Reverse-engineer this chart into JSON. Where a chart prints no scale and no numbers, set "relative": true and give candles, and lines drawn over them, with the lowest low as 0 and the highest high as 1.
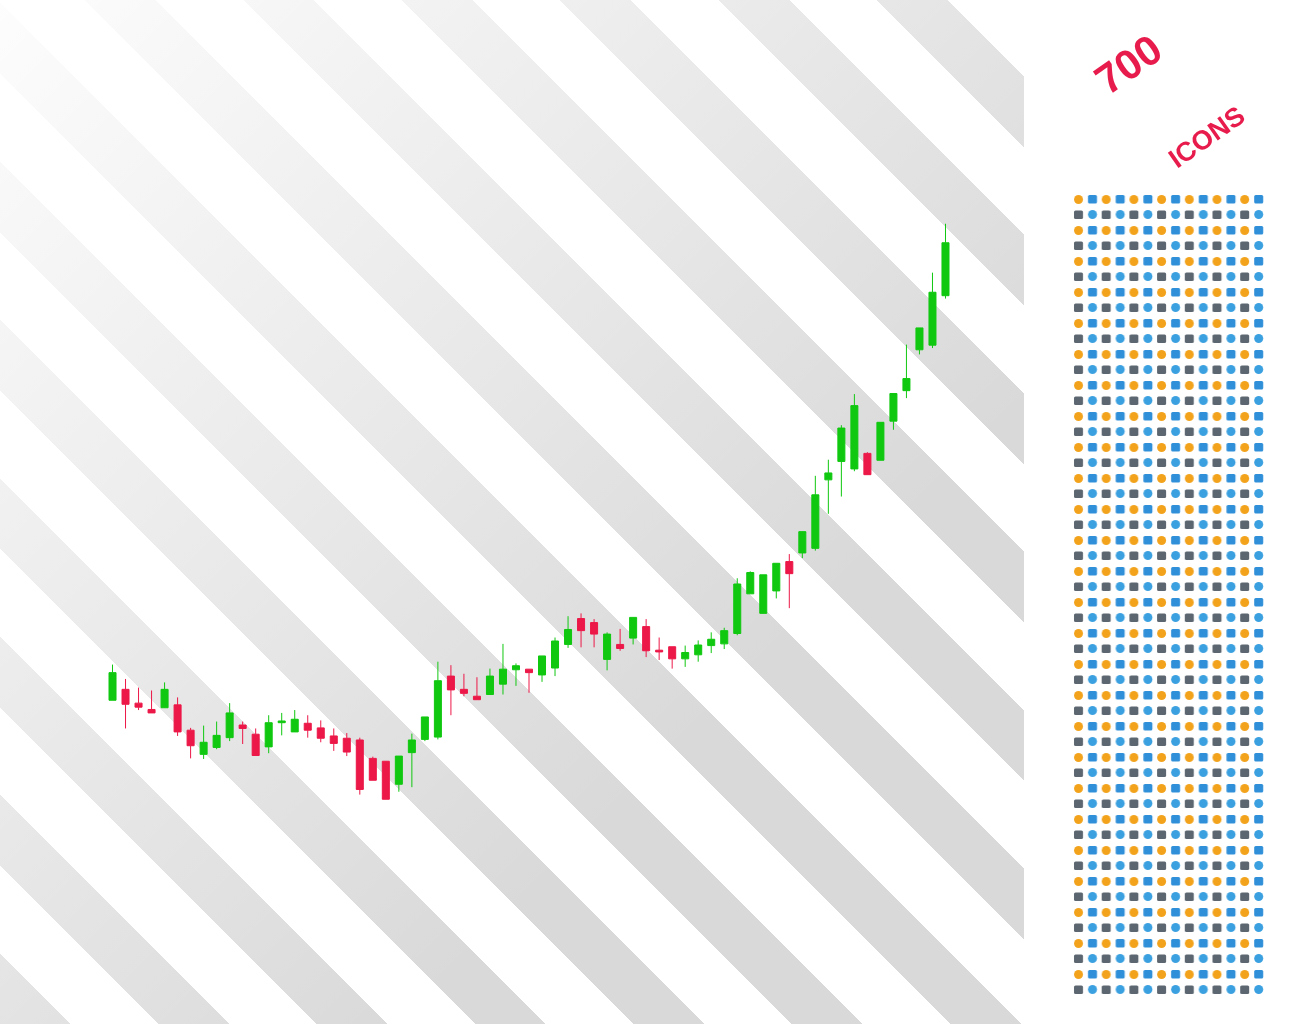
{
  "chart_data": {
    "type": "candlestick",
    "relative": true,
    "categories": [
      null,
      null,
      null,
      null,
      null,
      null,
      null,
      null,
      null,
      null,
      null,
      null,
      null,
      null,
      null,
      null,
      null,
      null,
      null,
      null,
      null,
      null,
      null,
      null,
      null,
      null,
      null,
      null,
      null,
      null,
      null,
      null,
      null,
      null,
      null,
      null,
      null,
      null,
      null,
      null,
      null,
      null,
      null,
      null,
      null,
      null,
      null,
      null,
      null,
      null,
      null,
      null,
      null,
      null,
      null,
      null,
      null,
      null,
      null,
      null,
      null,
      null,
      null,
      null,
      null
    ],
    "ohlc": [
      [
        0.172,
        0.234,
        0.172,
        0.22
      ],
      [
        0.191,
        0.209,
        0.123,
        0.165
      ],
      [
        0.167,
        0.194,
        0.155,
        0.16
      ],
      [
        0.156,
        0.189,
        0.15,
        0.15
      ],
      [
        0.159,
        0.203,
        0.159,
        0.191
      ],
      [
        0.164,
        0.177,
        0.11,
        0.117
      ],
      [
        0.12,
        0.124,
        0.071,
        0.093
      ],
      [
        0.078,
        0.128,
        0.07,
        0.099
      ],
      [
        0.09,
        0.135,
        0.087,
        0.111
      ],
      [
        0.107,
        0.167,
        0.101,
        0.15
      ],
      [
        0.129,
        0.135,
        0.096,
        0.123
      ],
      [
        0.113,
        0.123,
        0.076,
        0.076
      ],
      [
        0.091,
        0.146,
        0.08,
        0.133
      ],
      [
        0.133,
        0.15,
        0.111,
        0.136
      ],
      [
        0.117,
        0.155,
        0.117,
        0.139
      ],
      [
        0.132,
        0.146,
        0.107,
        0.12
      ],
      [
        0.124,
        0.137,
        0.099,
        0.106
      ],
      [
        0.11,
        0.123,
        0.084,
        0.097
      ],
      [
        0.106,
        0.115,
        0.075,
        0.082
      ],
      [
        0.103,
        0.107,
        0.008,
        0.017
      ],
      [
        0.071,
        0.074,
        0.033,
        0.033
      ],
      [
        0.066,
        0.066,
        0,
        0
      ],
      [
        0.026,
        0.075,
        0.013,
        0.075
      ],
      [
        0.081,
        0.114,
        0.021,
        0.103
      ],
      [
        0.104,
        0.143,
        0.101,
        0.143
      ],
      [
        0.108,
        0.239,
        0.104,
        0.206
      ],
      [
        0.214,
        0.233,
        0.146,
        0.19
      ],
      [
        0.191,
        0.218,
        0.179,
        0.184
      ],
      [
        0.179,
        0.212,
        0.173,
        0.173
      ],
      [
        0.182,
        0.227,
        0.182,
        0.214
      ],
      [
        0.2,
        0.27,
        0.182,
        0.226
      ],
      [
        0.225,
        0.236,
        0.197,
        0.232
      ],
      [
        0.226,
        0.226,
        0.185,
        0.22
      ],
      [
        0.216,
        0.249,
        0.204,
        0.249
      ],
      [
        0.228,
        0.281,
        0.214,
        0.275
      ],
      [
        0.269,
        0.318,
        0.263,
        0.295
      ],
      [
        0.314,
        0.323,
        0.264,
        0.293
      ],
      [
        0.307,
        0.313,
        0.264,
        0.287
      ],
      [
        0.243,
        0.29,
        0.224,
        0.287
      ],
      [
        0.269,
        0.296,
        0.258,
        0.262
      ],
      [
        0.28,
        0.316,
        0.269,
        0.316
      ],
      [
        0.3,
        0.313,
        0.247,
        0.258
      ],
      [
        0.259,
        0.281,
        0.242,
        0.256
      ],
      [
        0.265,
        0.265,
        0.227,
        0.244
      ],
      [
        0.244,
        0.267,
        0.23,
        0.255
      ],
      [
        0.251,
        0.276,
        0.239,
        0.268
      ],
      [
        0.267,
        0.29,
        0.254,
        0.278
      ],
      [
        0.27,
        0.298,
        0.261,
        0.293
      ],
      [
        0.288,
        0.384,
        0.285,
        0.374
      ],
      [
        0.357,
        0.396,
        0.357,
        0.394
      ],
      [
        0.323,
        0.39,
        0.323,
        0.39
      ],
      [
        0.362,
        0.41,
        0.349,
        0.41
      ],
      [
        0.413,
        0.426,
        0.332,
        0.392
      ],
      [
        0.428,
        0.465,
        0.419,
        0.465
      ],
      [
        0.436,
        0.562,
        0.432,
        0.529
      ],
      [
        0.555,
        0.59,
        0.496,
        0.567
      ],
      [
        0.587,
        0.65,
        0.526,
        0.645
      ],
      [
        0.574,
        0.704,
        0.57,
        0.684
      ],
      [
        0.601,
        0.603,
        0.564,
        0.564
      ],
      [
        0.589,
        0.655,
        0.589,
        0.655
      ],
      [
        0.657,
        0.705,
        0.642,
        0.705
      ],
      [
        0.71,
        0.79,
        0.697,
        0.731
      ],
      [
        0.781,
        0.819,
        0.773,
        0.819
      ],
      [
        0.789,
        0.915,
        0.784,
        0.881
      ],
      [
        0.875,
        1,
        0.87,
        0.967
      ]
    ],
    "colors": [
      "#10c810",
      "#ec1848",
      "#ec1848",
      "#ec1848",
      "#10c810",
      "#ec1848",
      "#ec1848",
      "#10c810",
      "#10c810",
      "#10c810",
      "#ec1848",
      "#ec1848",
      "#10c810",
      "#10c810",
      "#10c810",
      "#ec1848",
      "#ec1848",
      "#ec1848",
      "#ec1848",
      "#ec1848",
      "#ec1848",
      "#ec1848",
      "#10c810",
      "#10c810",
      "#10c810",
      "#10c810",
      "#ec1848",
      "#ec1848",
      "#ec1848",
      "#10c810",
      "#10c810",
      "#10c810",
      "#ec1848",
      "#10c810",
      "#10c810",
      "#10c810",
      "#ec1848",
      "#ec1848",
      "#10c810",
      "#ec1848",
      "#10c810",
      "#ec1848",
      "#ec1848",
      "#ec1848",
      "#10c810",
      "#10c810",
      "#10c810",
      "#10c810",
      "#10c810",
      "#10c810",
      "#10c810",
      "#10c810",
      "#ec1848",
      "#10c810",
      "#10c810",
      "#10c810",
      "#10c810",
      "#10c810",
      "#ec1848",
      "#10c810",
      "#10c810",
      "#10c810",
      "#10c810",
      "#10c810",
      "#10c810"
    ],
    "annotations": [
      "700",
      "ICONS"
    ]
  }
}
